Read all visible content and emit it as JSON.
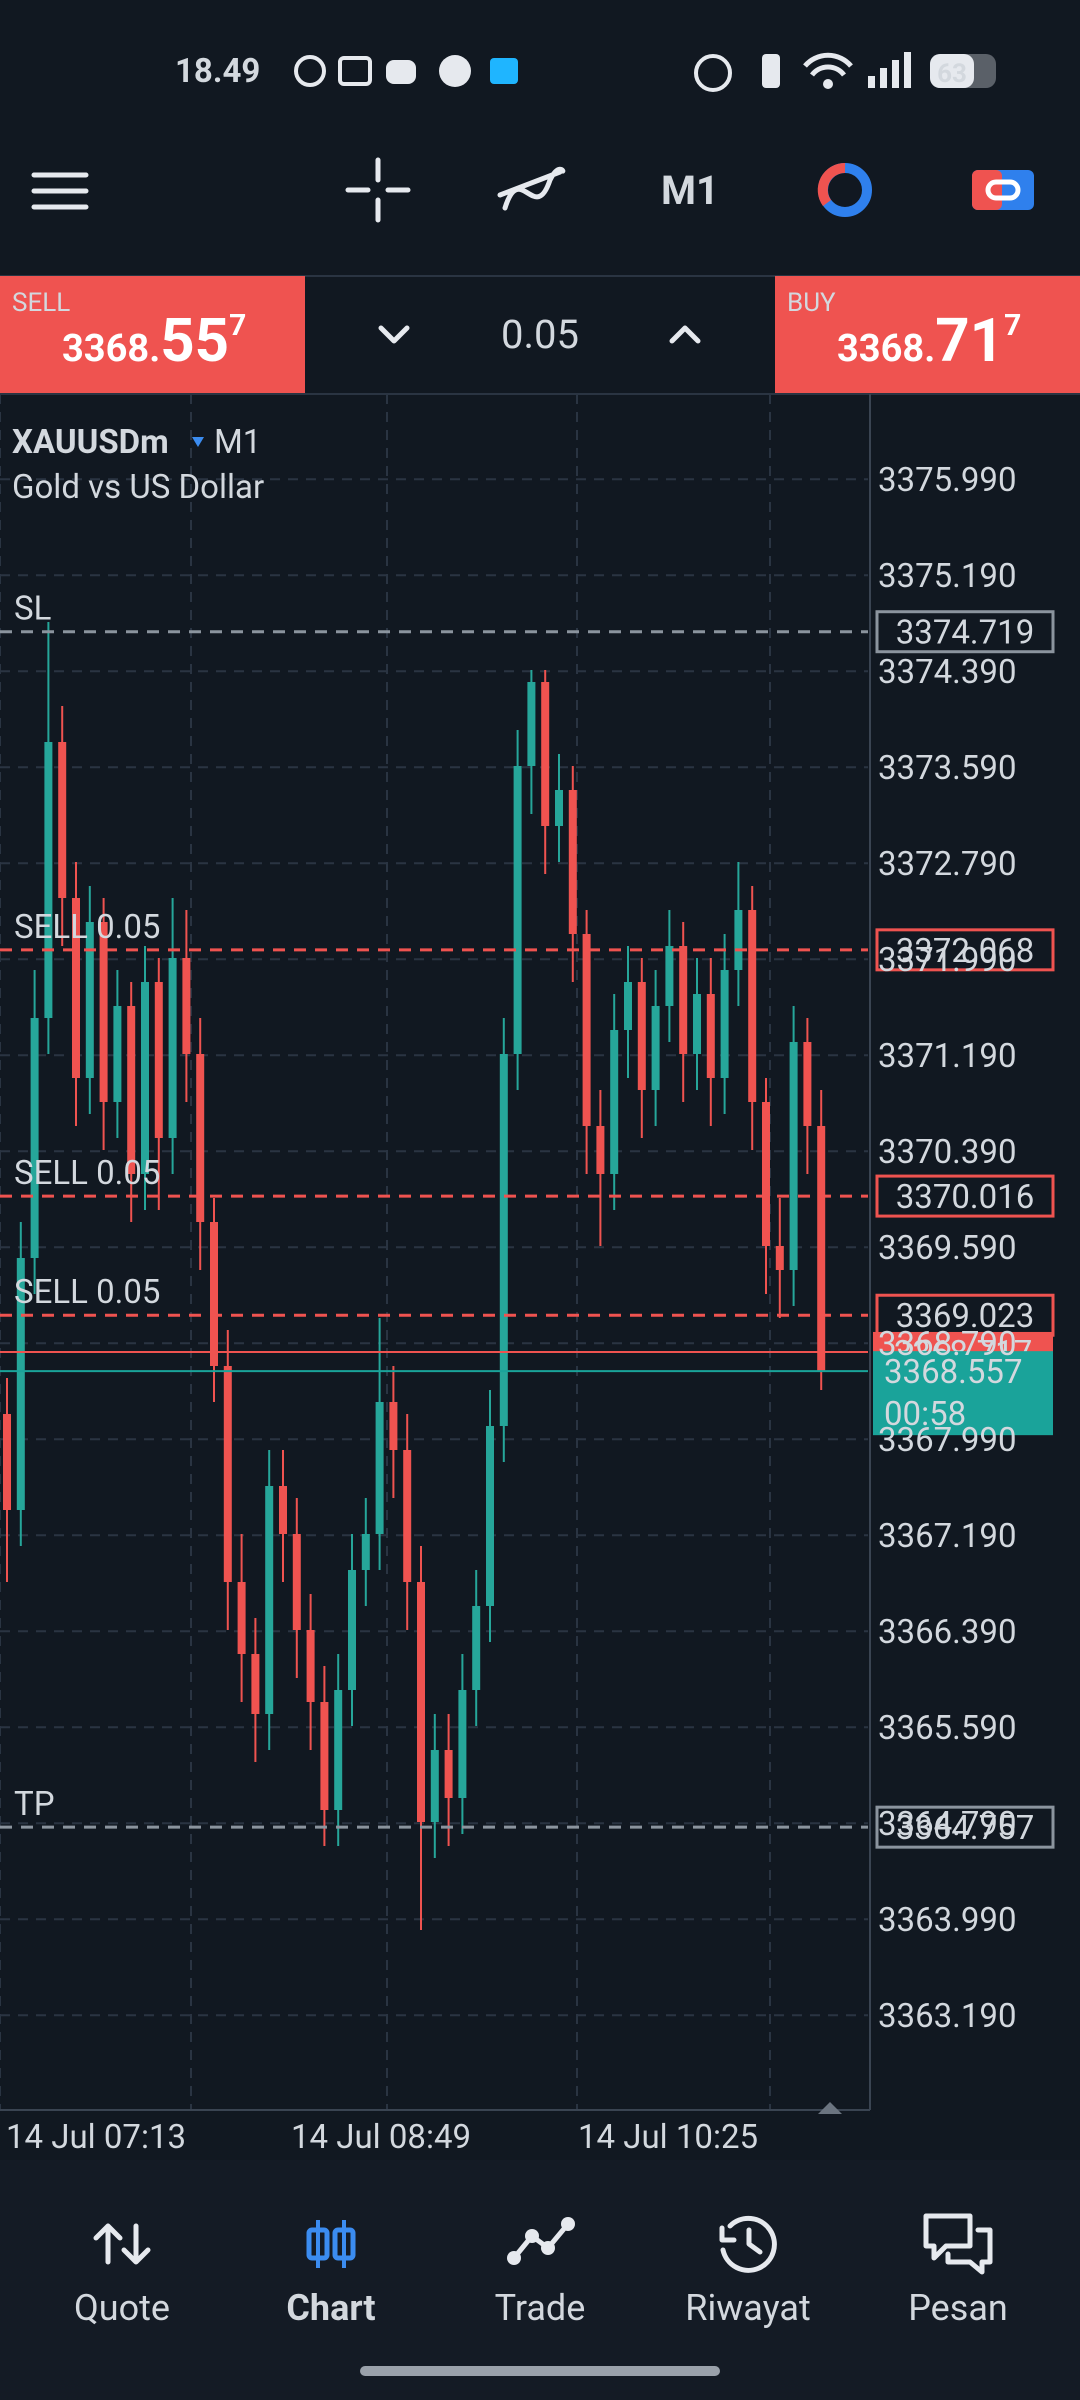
{
  "status_bar": {
    "time": "18.49",
    "battery": "63"
  },
  "toolbar": {
    "timeframe": "M1"
  },
  "trade_panel": {
    "sell": {
      "label": "SELL",
      "price_main": "3368.",
      "price_big": "55",
      "price_sup": "7"
    },
    "buy": {
      "label": "BUY",
      "price_main": "3368.",
      "price_big": "71",
      "price_sup": "7"
    },
    "volume": "0.05"
  },
  "chart": {
    "type": "candlestick",
    "symbol": "XAUUSDm",
    "timeframe": "M1",
    "description": "Gold vs US Dollar",
    "ylim": [
      3362.4,
      3376.7
    ],
    "yticks": [
      {
        "value": 3375.99,
        "label": "3375.990"
      },
      {
        "value": 3375.19,
        "label": "3375.190"
      },
      {
        "value": 3374.39,
        "label": "3374.390"
      },
      {
        "value": 3373.59,
        "label": "3373.590"
      },
      {
        "value": 3372.79,
        "label": "3372.790"
      },
      {
        "value": 3371.99,
        "label": "3371.990"
      },
      {
        "value": 3371.19,
        "label": "3371.190"
      },
      {
        "value": 3370.39,
        "label": "3370.390"
      },
      {
        "value": 3369.59,
        "label": "3369.590"
      },
      {
        "value": 3368.79,
        "label": "3368.790"
      },
      {
        "value": 3367.99,
        "label": "3367.990"
      },
      {
        "value": 3367.19,
        "label": "3367.190"
      },
      {
        "value": 3366.39,
        "label": "3366.390"
      },
      {
        "value": 3365.59,
        "label": "3365.590"
      },
      {
        "value": 3364.79,
        "label": "3364.790"
      },
      {
        "value": 3363.99,
        "label": "3363.990"
      },
      {
        "value": 3363.19,
        "label": "3363.190"
      }
    ],
    "x_labels": [
      "14 Jul 07:13",
      "14 Jul 08:49",
      "14 Jul 10:25"
    ],
    "up_color": "#26a69a",
    "down_color": "#ef5350",
    "candles": [
      [
        3368.2,
        3368.5,
        3366.8,
        3367.4
      ],
      [
        3367.4,
        3369.8,
        3367.1,
        3369.5
      ],
      [
        3369.5,
        3371.9,
        3369.2,
        3371.5
      ],
      [
        3371.5,
        3374.8,
        3371.2,
        3373.8
      ],
      [
        3373.8,
        3374.1,
        3372.1,
        3372.5
      ],
      [
        3372.5,
        3372.8,
        3370.6,
        3371.0
      ],
      [
        3371.0,
        3372.6,
        3370.7,
        3372.3
      ],
      [
        3372.3,
        3372.5,
        3370.4,
        3370.8
      ],
      [
        3370.8,
        3371.9,
        3370.5,
        3371.6
      ],
      [
        3371.6,
        3371.8,
        3369.8,
        3370.2
      ],
      [
        3370.2,
        3372.1,
        3369.9,
        3371.8
      ],
      [
        3371.8,
        3372.0,
        3369.9,
        3370.5
      ],
      [
        3370.5,
        3372.5,
        3370.2,
        3372.0
      ],
      [
        3372.0,
        3372.4,
        3370.8,
        3371.2
      ],
      [
        3371.2,
        3371.5,
        3369.4,
        3369.8
      ],
      [
        3369.8,
        3370.0,
        3368.3,
        3368.6
      ],
      [
        3368.6,
        3368.9,
        3366.4,
        3366.8
      ],
      [
        3366.8,
        3367.2,
        3365.8,
        3366.2
      ],
      [
        3366.2,
        3366.5,
        3365.3,
        3365.7
      ],
      [
        3365.7,
        3367.9,
        3365.4,
        3367.6
      ],
      [
        3367.6,
        3367.9,
        3366.8,
        3367.2
      ],
      [
        3367.2,
        3367.5,
        3366.0,
        3366.4
      ],
      [
        3366.4,
        3366.7,
        3365.4,
        3365.8
      ],
      [
        3365.8,
        3366.1,
        3364.6,
        3364.9
      ],
      [
        3364.9,
        3366.2,
        3364.6,
        3365.9
      ],
      [
        3365.9,
        3367.2,
        3365.6,
        3366.9
      ],
      [
        3366.9,
        3367.5,
        3366.6,
        3367.2
      ],
      [
        3367.2,
        3369.0,
        3366.9,
        3368.3
      ],
      [
        3368.3,
        3368.6,
        3367.5,
        3367.9
      ],
      [
        3367.9,
        3368.2,
        3366.4,
        3366.8
      ],
      [
        3366.8,
        3367.1,
        3363.9,
        3364.8
      ],
      [
        3364.8,
        3365.7,
        3364.5,
        3365.4
      ],
      [
        3365.4,
        3365.7,
        3364.6,
        3365.0
      ],
      [
        3365.0,
        3366.2,
        3364.7,
        3365.9
      ],
      [
        3365.9,
        3366.9,
        3365.6,
        3366.6
      ],
      [
        3366.6,
        3368.4,
        3366.3,
        3368.1
      ],
      [
        3368.1,
        3371.5,
        3367.8,
        3371.2
      ],
      [
        3371.2,
        3373.9,
        3370.9,
        3373.6
      ],
      [
        3373.6,
        3374.4,
        3373.2,
        3374.3
      ],
      [
        3374.3,
        3374.4,
        3372.7,
        3373.1
      ],
      [
        3373.1,
        3373.7,
        3372.8,
        3373.4
      ],
      [
        3373.4,
        3373.6,
        3371.8,
        3372.2
      ],
      [
        3372.2,
        3372.4,
        3370.2,
        3370.6
      ],
      [
        3370.6,
        3370.9,
        3369.6,
        3370.2
      ],
      [
        3370.2,
        3371.7,
        3369.9,
        3371.4
      ],
      [
        3371.4,
        3372.1,
        3371.0,
        3371.8
      ],
      [
        3371.8,
        3372.0,
        3370.5,
        3370.9
      ],
      [
        3370.9,
        3371.9,
        3370.6,
        3371.6
      ],
      [
        3371.6,
        3372.4,
        3371.3,
        3372.1
      ],
      [
        3372.1,
        3372.3,
        3370.8,
        3371.2
      ],
      [
        3371.2,
        3372.0,
        3370.9,
        3371.7
      ],
      [
        3371.7,
        3372.0,
        3370.6,
        3371.0
      ],
      [
        3371.0,
        3372.2,
        3370.7,
        3371.9
      ],
      [
        3371.9,
        3372.8,
        3371.6,
        3372.4
      ],
      [
        3372.4,
        3372.6,
        3370.4,
        3370.8
      ],
      [
        3370.8,
        3371.0,
        3369.2,
        3369.6
      ],
      [
        3369.6,
        3370.0,
        3369.0,
        3369.4
      ],
      [
        3369.4,
        3371.6,
        3369.1,
        3371.3
      ],
      [
        3371.3,
        3371.5,
        3370.2,
        3370.6
      ],
      [
        3370.6,
        3370.9,
        3368.4,
        3368.557
      ]
    ],
    "levels": [
      {
        "label": "SL",
        "price": 3374.719,
        "color": "#8b949e"
      },
      {
        "label": "SELL 0.05",
        "price": 3372.068,
        "color": "#ef5350"
      },
      {
        "label": "SELL 0.05",
        "price": 3370.016,
        "color": "#ef5350"
      },
      {
        "label": "SELL 0.05",
        "price": 3369.023,
        "color": "#ef5350"
      },
      {
        "label": "TP",
        "price": 3364.757,
        "color": "#8b949e"
      }
    ],
    "ask": 3368.717,
    "ask_color": "#ef5350",
    "bid": 3368.557,
    "bid_color": "#1aa39a",
    "timer": "00:58"
  },
  "nav": [
    {
      "label": "Quote"
    },
    {
      "label": "Chart"
    },
    {
      "label": "Trade"
    },
    {
      "label": "Riwayat"
    },
    {
      "label": "Pesan"
    }
  ]
}
